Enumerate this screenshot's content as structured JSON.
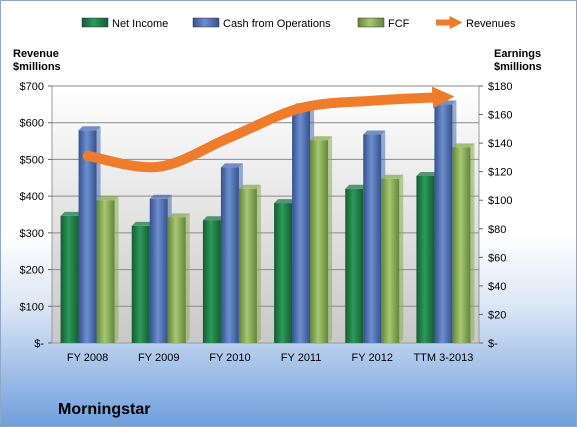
{
  "chart_data": {
    "type": "bar",
    "categories": [
      "FY 2008",
      "FY 2009",
      "FY 2010",
      "FY 2011",
      "FY 2012",
      "TTM 3-2013"
    ],
    "left_axis": {
      "label_line1": "Revenue",
      "label_line2": "$millions",
      "ylim": [
        0,
        700
      ],
      "ticks": [
        "$-",
        "$100",
        "$200",
        "$300",
        "$400",
        "$500",
        "$600",
        "$700"
      ]
    },
    "right_axis": {
      "label_line1": "Earnings",
      "label_line2": "$millions",
      "ylim": [
        0,
        180
      ],
      "ticks": [
        "$-",
        "$20",
        "$40",
        "$60",
        "$80",
        "$100",
        "$120",
        "$140",
        "$160",
        "$180"
      ]
    },
    "series": [
      {
        "name": "Net Income",
        "axis": "right",
        "kind": "bar",
        "color": "#1e7b45",
        "values": [
          89,
          82,
          86,
          98,
          108,
          117
        ]
      },
      {
        "name": "Cash from Operations",
        "axis": "right",
        "kind": "bar",
        "color": "#4a6cb0",
        "values": [
          149,
          101,
          123,
          165,
          146,
          167
        ]
      },
      {
        "name": "FCF",
        "axis": "right",
        "kind": "bar",
        "color": "#86ad52",
        "values": [
          100,
          88,
          108,
          142,
          115,
          137
        ]
      },
      {
        "name": "Revenues",
        "axis": "left",
        "kind": "line",
        "color": "#ee7c2a",
        "values": [
          510,
          480,
          560,
          640,
          660,
          670
        ]
      }
    ],
    "grid": true,
    "legend_position": "top"
  },
  "company": "Morningstar"
}
